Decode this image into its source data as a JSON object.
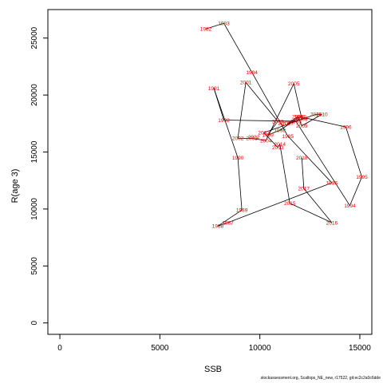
{
  "chart_data": {
    "type": "line",
    "xlabel": "SSB",
    "ylabel": "R(age 3)",
    "xlim": [
      -600,
      15600
    ],
    "ylim": [
      -1000,
      27500
    ],
    "x_ticks": [
      0,
      5000,
      10000,
      15000
    ],
    "y_ticks": [
      0,
      5000,
      10000,
      15000,
      20000,
      25000
    ],
    "line_color": "#000000",
    "label_color": "#ff0000",
    "points": [
      {
        "year": "1982",
        "x": 7300,
        "y": 25800
      },
      {
        "year": "1983",
        "x": 8200,
        "y": 26300
      },
      {
        "year": "1984",
        "x": 9600,
        "y": 22000
      },
      {
        "year": "1985",
        "x": 11400,
        "y": 16400
      },
      {
        "year": "1986",
        "x": 13600,
        "y": 12300
      },
      {
        "year": "1987",
        "x": 8400,
        "y": 8800
      },
      {
        "year": "1988",
        "x": 7900,
        "y": 8500
      },
      {
        "year": "1989",
        "x": 9100,
        "y": 9900
      },
      {
        "year": "1990",
        "x": 8900,
        "y": 14500
      },
      {
        "year": "1991",
        "x": 7700,
        "y": 20600
      },
      {
        "year": "1992",
        "x": 8200,
        "y": 17800
      },
      {
        "year": "1993",
        "x": 11800,
        "y": 17700
      },
      {
        "year": "1994",
        "x": 14500,
        "y": 10300
      },
      {
        "year": "1995",
        "x": 15100,
        "y": 12800
      },
      {
        "year": "1996",
        "x": 14300,
        "y": 17200
      },
      {
        "year": "1997",
        "x": 12000,
        "y": 18100
      },
      {
        "year": "1998",
        "x": 11000,
        "y": 16900
      },
      {
        "year": "1999",
        "x": 10400,
        "y": 16500
      },
      {
        "year": "2000",
        "x": 10900,
        "y": 17700
      },
      {
        "year": "2001",
        "x": 9300,
        "y": 21100
      },
      {
        "year": "2002",
        "x": 8900,
        "y": 16200
      },
      {
        "year": "2003",
        "x": 9600,
        "y": 16200
      },
      {
        "year": "2004",
        "x": 10300,
        "y": 16000
      },
      {
        "year": "2005",
        "x": 11700,
        "y": 21000
      },
      {
        "year": "2006",
        "x": 12100,
        "y": 17900
      },
      {
        "year": "2007",
        "x": 11400,
        "y": 17500
      },
      {
        "year": "2008",
        "x": 11900,
        "y": 18100
      },
      {
        "year": "2009",
        "x": 12100,
        "y": 17300
      },
      {
        "year": "2010",
        "x": 13100,
        "y": 18300
      },
      {
        "year": "2011",
        "x": 12800,
        "y": 18300
      },
      {
        "year": "2012",
        "x": 10200,
        "y": 16700
      },
      {
        "year": "2013",
        "x": 10900,
        "y": 15400
      },
      {
        "year": "2014",
        "x": 11000,
        "y": 15700
      },
      {
        "year": "2015",
        "x": 11500,
        "y": 10500
      },
      {
        "year": "2016",
        "x": 13600,
        "y": 8800
      },
      {
        "year": "2017",
        "x": 12200,
        "y": 11800
      },
      {
        "year": "2018",
        "x": 12100,
        "y": 14500
      }
    ],
    "extra_labels": [
      {
        "text": "2022",
        "x": 9700,
        "y": 16300
      },
      {
        "text": "2019",
        "x": 11200,
        "y": 17500
      },
      {
        "text": "2020",
        "x": 12100,
        "y": 18000
      }
    ]
  },
  "footer": {
    "text": "stockassessment.org, Scallops_NE_new, r17522, git:ec2c2a0c6dde"
  }
}
